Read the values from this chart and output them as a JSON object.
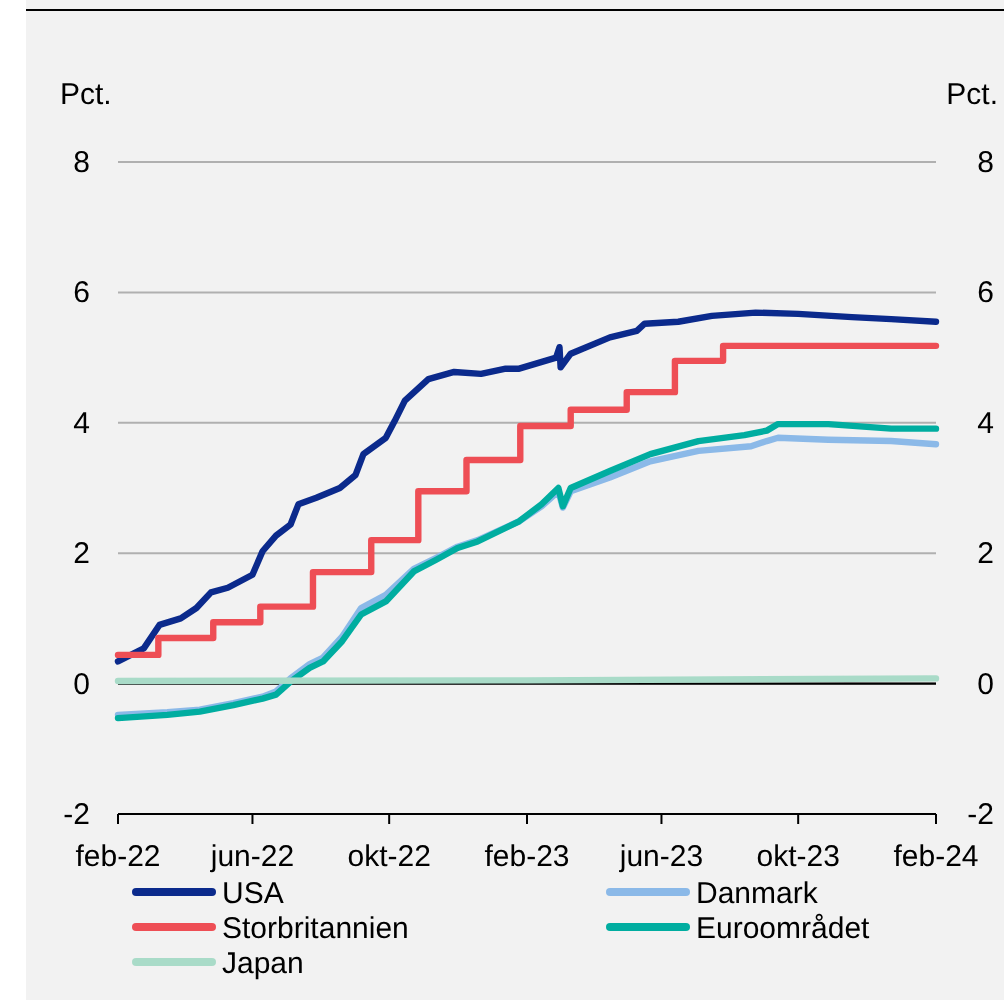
{
  "chart_data": {
    "type": "line",
    "ylabel": "Pct.",
    "y2label": "Pct.",
    "xlim": [
      "2022-02-01",
      "2024-02-01"
    ],
    "xticks": [
      {
        "value": "2022-02-01",
        "label": "feb-22"
      },
      {
        "value": "2022-06-01",
        "label": "jun-22"
      },
      {
        "value": "2022-10-01",
        "label": "okt-22"
      },
      {
        "value": "2023-02-01",
        "label": "feb-23"
      },
      {
        "value": "2023-06-01",
        "label": "jun-23"
      },
      {
        "value": "2023-10-01",
        "label": "okt-23"
      },
      {
        "value": "2024-02-01",
        "label": "feb-24"
      }
    ],
    "ylim": [
      -2,
      8
    ],
    "yticks": [
      -2,
      0,
      2,
      4,
      6,
      8
    ],
    "y2lim": [
      -2,
      8
    ],
    "y2ticks": [
      -2,
      0,
      2,
      4,
      6,
      8
    ],
    "grid": "y",
    "legend": "bottom",
    "ref_lines": [
      {
        "axis": "y",
        "value": 0,
        "color": "#000000"
      }
    ],
    "series": [
      {
        "name": "USA",
        "color": "#0b2a8c",
        "x": [
          "2022-02-01",
          "2022-02-24",
          "2022-03-10",
          "2022-03-29",
          "2022-04-12",
          "2022-04-25",
          "2022-05-10",
          "2022-06-01",
          "2022-06-10",
          "2022-06-22",
          "2022-07-05",
          "2022-07-12",
          "2022-07-28",
          "2022-08-18",
          "2022-09-01",
          "2022-09-08",
          "2022-09-28",
          "2022-10-06",
          "2022-10-15",
          "2022-11-05",
          "2022-11-28",
          "2022-12-22",
          "2023-01-13",
          "2023-01-25",
          "2023-02-27",
          "2023-03-02",
          "2023-03-03",
          "2023-03-12",
          "2023-04-16",
          "2023-05-10",
          "2023-05-17",
          "2023-06-16",
          "2023-07-16",
          "2023-08-24",
          "2023-10-01",
          "2023-11-18",
          "2023-12-23",
          "2024-02-01"
        ],
        "values": [
          0.34,
          0.54,
          0.9,
          1.0,
          1.16,
          1.4,
          1.47,
          1.67,
          2.03,
          2.27,
          2.44,
          2.75,
          2.85,
          3.0,
          3.2,
          3.52,
          3.77,
          4.03,
          4.34,
          4.67,
          4.78,
          4.75,
          4.83,
          4.83,
          5.0,
          5.16,
          4.85,
          5.06,
          5.31,
          5.41,
          5.52,
          5.55,
          5.64,
          5.69,
          5.67,
          5.62,
          5.59,
          5.55
        ]
      },
      {
        "name": "Danmark",
        "color": "#8bb9e8",
        "x": [
          "2022-02-01",
          "2022-03-17",
          "2022-04-15",
          "2022-05-15",
          "2022-06-10",
          "2022-06-22",
          "2022-07-05",
          "2022-07-22",
          "2022-08-03",
          "2022-08-20",
          "2022-09-06",
          "2022-09-28",
          "2022-10-23",
          "2022-11-12",
          "2022-12-01",
          "2022-12-19",
          "2023-01-25",
          "2023-02-14",
          "2023-03-01",
          "2023-03-05",
          "2023-03-12",
          "2023-04-16",
          "2023-05-22",
          "2023-07-04",
          "2023-08-20",
          "2023-09-03",
          "2023-09-13",
          "2023-10-28",
          "2023-12-23",
          "2024-02-01"
        ],
        "values": [
          -0.48,
          -0.44,
          -0.4,
          -0.3,
          -0.2,
          -0.12,
          0.08,
          0.3,
          0.4,
          0.72,
          1.16,
          1.36,
          1.76,
          1.93,
          2.1,
          2.2,
          2.49,
          2.72,
          2.95,
          2.7,
          2.95,
          3.16,
          3.41,
          3.57,
          3.64,
          3.72,
          3.77,
          3.74,
          3.72,
          3.67
        ]
      },
      {
        "name": "Storbritannien",
        "type": "step",
        "color": "#ee4e55",
        "x": [
          "2022-02-01",
          "2022-03-09",
          "2022-04-27",
          "2022-06-08",
          "2022-07-25",
          "2022-09-15",
          "2022-10-27",
          "2022-12-09",
          "2023-01-26",
          "2023-03-12",
          "2023-05-01",
          "2023-06-13",
          "2023-07-26",
          "2024-02-01"
        ],
        "values": [
          0.44,
          0.7,
          0.94,
          1.18,
          1.71,
          2.2,
          2.95,
          3.43,
          3.95,
          4.2,
          4.47,
          4.95,
          5.18,
          5.18
        ]
      },
      {
        "name": "Euroområdet",
        "color": "#00ada0",
        "x": [
          "2022-02-01",
          "2022-03-17",
          "2022-04-15",
          "2022-05-15",
          "2022-06-10",
          "2022-06-22",
          "2022-07-05",
          "2022-07-22",
          "2022-08-03",
          "2022-08-20",
          "2022-09-06",
          "2022-09-28",
          "2022-10-23",
          "2022-11-12",
          "2022-12-01",
          "2022-12-19",
          "2023-01-25",
          "2023-02-14",
          "2023-03-01",
          "2023-03-05",
          "2023-03-12",
          "2023-04-16",
          "2023-05-22",
          "2023-07-04",
          "2023-08-14",
          "2023-09-03",
          "2023-09-13",
          "2023-10-28",
          "2023-12-23",
          "2024-02-01"
        ],
        "values": [
          -0.53,
          -0.48,
          -0.43,
          -0.33,
          -0.23,
          -0.17,
          0.03,
          0.24,
          0.34,
          0.65,
          1.06,
          1.26,
          1.72,
          1.9,
          2.08,
          2.18,
          2.49,
          2.75,
          3.0,
          2.72,
          3.0,
          3.26,
          3.52,
          3.72,
          3.81,
          3.88,
          3.98,
          3.98,
          3.91,
          3.91
        ]
      },
      {
        "name": "Japan",
        "color": "#a9dbc8",
        "x": [
          "2022-02-01",
          "2023-02-01",
          "2024-02-01"
        ],
        "values": [
          0.04,
          0.05,
          0.08
        ]
      }
    ]
  }
}
